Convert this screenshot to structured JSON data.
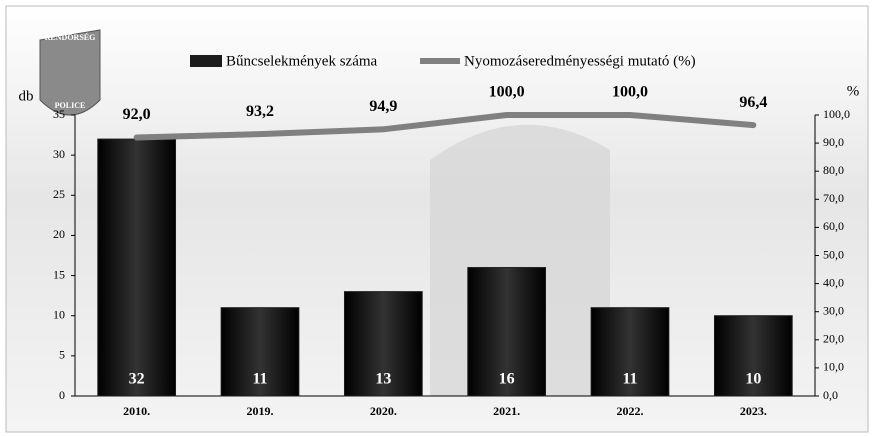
{
  "chart_data": {
    "type": "bar_line",
    "logo": [
      "RENDŐRSÉG",
      "POLICE"
    ],
    "ylabel": "db",
    "y2label": "%",
    "categories": [
      "2010.",
      "2019.",
      "2020.",
      "2021.",
      "2022.",
      "2023."
    ],
    "series": [
      {
        "name": "Bűncselekmények száma",
        "type": "bar",
        "color": "#1c1c1c",
        "values": [
          32,
          11,
          13,
          16,
          11,
          10
        ]
      },
      {
        "name": "Nyomozáseredményességi mutató (%)",
        "type": "line",
        "axis": "y2",
        "color": "#808080",
        "values": [
          92.0,
          93.2,
          94.9,
          100.0,
          100.0,
          96.4
        ],
        "value_labels": [
          "92,0",
          "93,2",
          "94,9",
          "100,0",
          "100,0",
          "96,4"
        ]
      }
    ],
    "ylim": [
      0,
      35
    ],
    "yticks": [
      0,
      5,
      10,
      15,
      20,
      25,
      30,
      35
    ],
    "y2lim": [
      0,
      100
    ],
    "y2ticks": [
      {
        "value": 0,
        "label": "0,0"
      },
      {
        "value": 10,
        "label": "10,0"
      },
      {
        "value": 20,
        "label": "20,0"
      },
      {
        "value": 30,
        "label": "30,0"
      },
      {
        "value": 40,
        "label": "40,0"
      },
      {
        "value": 50,
        "label": "50,0"
      },
      {
        "value": 60,
        "label": "60,0"
      },
      {
        "value": 70,
        "label": "70,0"
      },
      {
        "value": 80,
        "label": "80,0"
      },
      {
        "value": 90,
        "label": "90,0"
      },
      {
        "value": 100,
        "label": "100,0"
      }
    ]
  }
}
